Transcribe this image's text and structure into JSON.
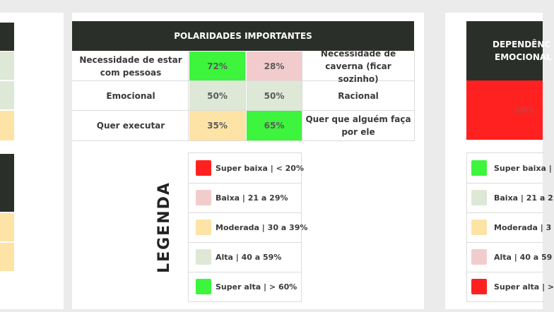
{
  "colors": {
    "header_bg": "#2b2f29",
    "super_baixa": "#ff2020",
    "baixa": "#f2cccc",
    "moderada": "#fde3a6",
    "alta": "#dde8d6",
    "super_alta": "#3cf53c"
  },
  "polaridades": {
    "title": "POLARIDADES IMPORTANTES",
    "rows": [
      {
        "left": "Necessidade de estar com pessoas",
        "left_pct": "72%",
        "right_pct": "28%",
        "right": "Necessidade de caverna (ficar sozinho)"
      },
      {
        "left": "Emocional",
        "left_pct": "50%",
        "right_pct": "50%",
        "right": "Racional"
      },
      {
        "left": "Quer executar",
        "left_pct": "35%",
        "right_pct": "65%",
        "right": "Quer que alguém faça por ele"
      }
    ]
  },
  "legenda": {
    "title": "LEGENDA",
    "items": [
      {
        "label": "Super baixa | < 20%"
      },
      {
        "label": "Baixa | 21 a 29%"
      },
      {
        "label": "Moderada | 30 a 39%"
      },
      {
        "label": "Alta  | 40 a 59%"
      },
      {
        "label": "Super alta | > 60%"
      }
    ]
  },
  "right_panel": {
    "title_line1": "DEPENDÊNC",
    "title_line2": "EMOCIONAL",
    "value": "60%",
    "legend": [
      {
        "label": "Super baixa |"
      },
      {
        "label": "Baixa | 21 a 2"
      },
      {
        "label": "Moderada | 3"
      },
      {
        "label": "Alta  | 40 a 59"
      },
      {
        "label": "Super alta | >"
      }
    ]
  }
}
